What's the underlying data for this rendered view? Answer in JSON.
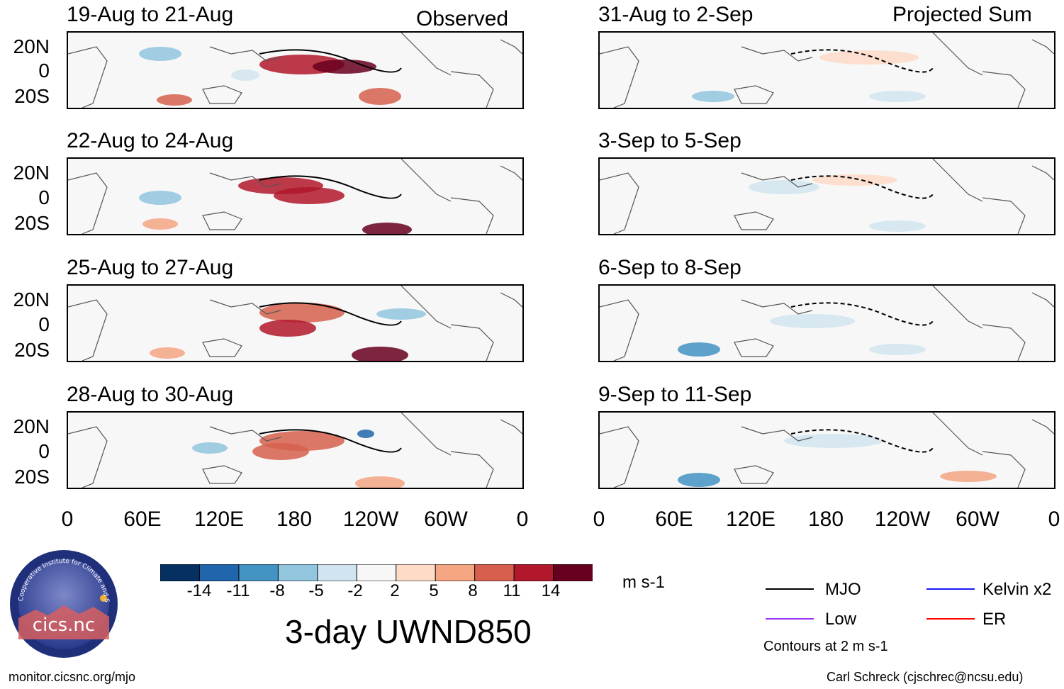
{
  "chart_data": {
    "type": "heatmap",
    "variable_title": "3-day UWND850",
    "units": "m s-1",
    "colorbar": {
      "tick_labels": [
        "-14",
        "-11",
        "-8",
        "-5",
        "-2",
        "2",
        "5",
        "8",
        "11",
        "14"
      ],
      "colors": [
        "#053061",
        "#2166ac",
        "#4393c3",
        "#92c5de",
        "#d1e5f0",
        "#f7f7f7",
        "#fddbc7",
        "#f4a582",
        "#d6604d",
        "#b2182b",
        "#67001f"
      ]
    },
    "x_tick_labels": [
      "0",
      "60E",
      "120E",
      "180",
      "120W",
      "60W",
      "0"
    ],
    "y_tick_labels": [
      "20N",
      "0",
      "20S"
    ],
    "observed_label": "Observed",
    "projected_label": "Projected Sum",
    "panels_observed": [
      {
        "period": "19-Aug to 21-Aug"
      },
      {
        "period": "22-Aug to 24-Aug"
      },
      {
        "period": "25-Aug to 27-Aug"
      },
      {
        "period": "28-Aug to 30-Aug"
      }
    ],
    "panels_projected": [
      {
        "period": "31-Aug to 2-Sep"
      },
      {
        "period": "3-Sep to 5-Sep"
      },
      {
        "period": "6-Sep to 8-Sep"
      },
      {
        "period": "9-Sep to 11-Sep"
      }
    ],
    "legend": {
      "entries": [
        {
          "label": "MJO",
          "color": "#000000"
        },
        {
          "label": "Kelvin x2",
          "color": "#1a1aff"
        },
        {
          "label": "Low",
          "color": "#9b30ff"
        },
        {
          "label": "ER",
          "color": "#ff0000"
        }
      ],
      "contour_note": "Contours at 2 m s-1"
    }
  },
  "footer": {
    "logo_text": "cics.nc",
    "logo_ring_text": "Cooperative Institute for Climate and Satellites",
    "url": "monitor.cicsnc.org/mjo",
    "credit": "Carl Schreck (cjschrec@ncsu.edu)"
  }
}
